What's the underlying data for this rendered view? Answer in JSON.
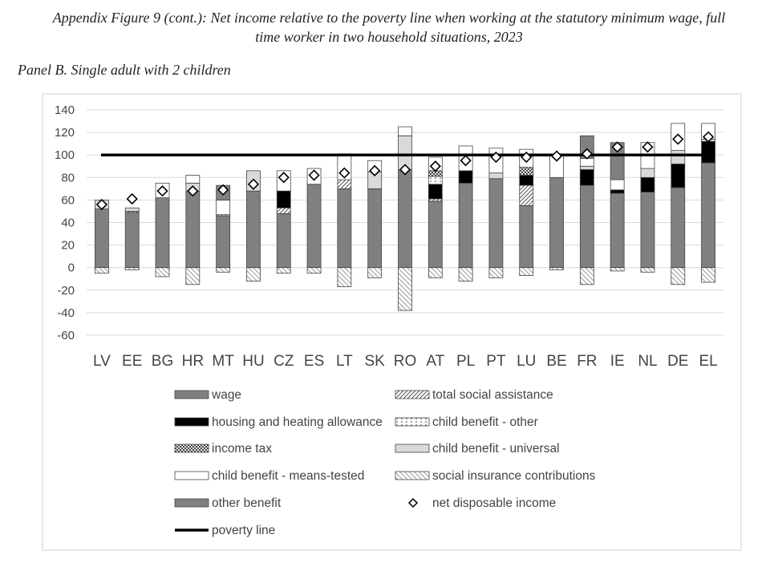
{
  "figure": {
    "title_line1": "Appendix Figure 9 (cont.): Net income relative to the poverty line when working at the statutory minimum wage, full",
    "title_line2": "time worker in two household situations, 2023",
    "panel_title": "Panel B. Single adult with 2 children"
  },
  "chart_data": {
    "type": "bar",
    "stacked": true,
    "title": "Panel B. Single adult with 2 children",
    "xlabel": "",
    "ylabel": "",
    "ylim": [
      -60,
      140
    ],
    "yticks": [
      140,
      120,
      100,
      80,
      60,
      40,
      20,
      0,
      -20,
      -40,
      -60
    ],
    "grid": true,
    "categories": [
      "LV",
      "EE",
      "BG",
      "HR",
      "MT",
      "HU",
      "CZ",
      "ES",
      "LT",
      "SK",
      "RO",
      "AT",
      "PL",
      "PT",
      "LU",
      "BE",
      "FR",
      "IE",
      "NL",
      "DE",
      "EL"
    ],
    "series": [
      {
        "name": "wage",
        "key": "wage",
        "color": "#808080",
        "pattern": "solid",
        "values": [
          52,
          49,
          62,
          68,
          46,
          68,
          48,
          74,
          70,
          70,
          87,
          59,
          75,
          79,
          55,
          80,
          73,
          66,
          67,
          71,
          93
        ]
      },
      {
        "name": "total social assistance",
        "key": "sa",
        "color": "#ffffff",
        "pattern": "hatch-fwd",
        "values": [
          0,
          1,
          0,
          0,
          1,
          0,
          5,
          0,
          8,
          0,
          0,
          2,
          0,
          0,
          18,
          0,
          0,
          0,
          0,
          0,
          0
        ]
      },
      {
        "name": "housing and heating allowance",
        "key": "house",
        "color": "#000000",
        "pattern": "solid",
        "values": [
          0,
          0,
          0,
          0,
          0,
          0,
          15,
          0,
          0,
          0,
          0,
          13,
          11,
          0,
          9,
          0,
          14,
          3,
          13,
          21,
          19
        ]
      },
      {
        "name": "child benefit - other",
        "key": "cbo",
        "color": "#ffffff",
        "pattern": "dots",
        "values": [
          0,
          0,
          0,
          0,
          0,
          0,
          0,
          0,
          0,
          0,
          0,
          7,
          0,
          0,
          0,
          0,
          0,
          0,
          0,
          0,
          0
        ]
      },
      {
        "name": "income tax",
        "key": "tax",
        "color": "#555555",
        "pattern": "checker",
        "values": [
          0,
          0,
          0,
          0,
          0,
          0,
          0,
          0,
          0,
          0,
          0,
          5,
          0,
          0,
          7,
          0,
          0,
          0,
          0,
          0,
          0
        ]
      },
      {
        "name": "child benefit - universal",
        "key": "cbu",
        "color": "#d9d9d9",
        "pattern": "solid",
        "values": [
          8,
          3,
          0,
          7,
          0,
          18,
          0,
          0,
          0,
          15,
          30,
          0,
          0,
          5,
          0,
          0,
          3,
          0,
          8,
          12,
          2
        ]
      },
      {
        "name": "child benefit - means-tested",
        "key": "cbm",
        "color": "#ffffff",
        "pattern": "solid",
        "values": [
          0,
          0,
          13,
          7,
          13,
          0,
          18,
          14,
          23,
          10,
          8,
          12,
          22,
          22,
          16,
          20,
          7,
          9,
          23,
          24,
          14
        ]
      },
      {
        "name": "social insurance contributions",
        "key": "sic",
        "color": "#ffffff",
        "pattern": "hatch-back",
        "values": [
          -5,
          -2,
          -8,
          -15,
          -4,
          -12,
          -5,
          -5,
          -17,
          -9,
          -38,
          -9,
          -12,
          -9,
          -7,
          -2,
          -15,
          -3,
          -4,
          -15,
          -13
        ]
      },
      {
        "name": "other benefit",
        "key": "ob",
        "color": "#808080",
        "pattern": "solid",
        "values": [
          0,
          0,
          0,
          0,
          13,
          0,
          0,
          0,
          0,
          0,
          0,
          0,
          0,
          0,
          0,
          0,
          20,
          33,
          0,
          0,
          0
        ]
      }
    ],
    "net_disposable_income": {
      "name": "net disposable income",
      "marker": "diamond",
      "values": [
        56,
        61,
        68,
        68,
        69,
        74,
        80,
        82,
        84,
        86,
        87,
        90,
        95,
        98,
        98,
        99,
        101,
        107,
        107,
        114,
        116
      ]
    },
    "poverty_line": {
      "name": "poverty line",
      "value": 100
    },
    "legend": {
      "placement": "bottom",
      "items": [
        {
          "label": "wage",
          "key": "wage"
        },
        {
          "label": "total social assistance",
          "key": "sa"
        },
        {
          "label": "housing and heating allowance",
          "key": "house"
        },
        {
          "label": "child benefit - other",
          "key": "cbo"
        },
        {
          "label": "income tax",
          "key": "tax"
        },
        {
          "label": "child benefit - universal",
          "key": "cbu"
        },
        {
          "label": "child benefit - means-tested",
          "key": "cbm"
        },
        {
          "label": "social insurance contributions",
          "key": "sic"
        },
        {
          "label": "other benefit",
          "key": "ob"
        },
        {
          "label": "net disposable income",
          "key": "ndi"
        },
        {
          "label": "poverty line",
          "key": "pl"
        }
      ]
    }
  }
}
